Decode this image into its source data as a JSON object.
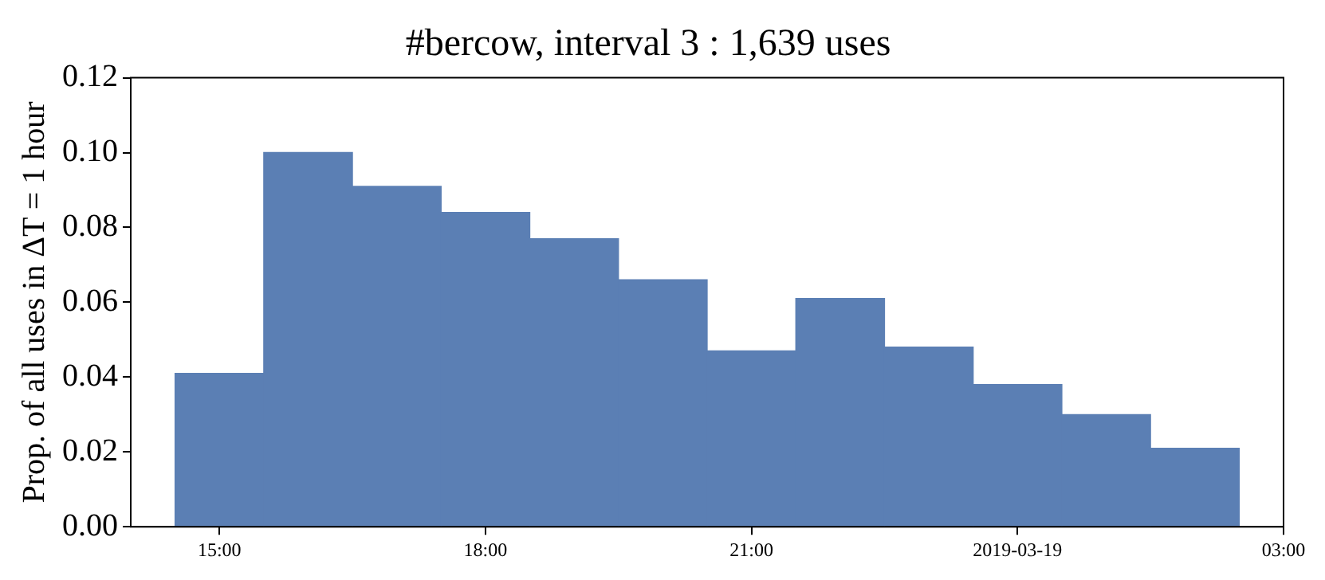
{
  "chart_data": {
    "type": "histogram",
    "title": "#bercow, interval 3 : 1,639 uses",
    "ylabel": "Prop. of all uses in ΔT = 1 hour",
    "bins": [
      "2019-03-18T14:30",
      "2019-03-18T15:30",
      "2019-03-18T16:30",
      "2019-03-18T17:30",
      "2019-03-18T18:30",
      "2019-03-18T19:30",
      "2019-03-18T20:30",
      "2019-03-18T21:30",
      "2019-03-18T22:30",
      "2019-03-18T23:30",
      "2019-03-19T00:30",
      "2019-03-19T01:30",
      "2019-03-19T02:30"
    ],
    "values": [
      0.041,
      0.1,
      0.091,
      0.084,
      0.077,
      0.066,
      0.047,
      0.061,
      0.048,
      0.038,
      0.03,
      0.021
    ],
    "color": "#5b7fb4",
    "xlim": [
      "2019-03-18T14:00",
      "2019-03-19T03:00"
    ],
    "xticks": [
      {
        "value": "2019-03-18T15:00",
        "label": "15:00"
      },
      {
        "value": "2019-03-18T18:00",
        "label": "18:00"
      },
      {
        "value": "2019-03-18T21:00",
        "label": "21:00"
      },
      {
        "value": "2019-03-19T00:00",
        "label": "2019-03-19"
      },
      {
        "value": "2019-03-19T03:00",
        "label": "03:00"
      }
    ],
    "ylim": [
      0,
      0.12
    ],
    "yticks": [
      {
        "value": 0,
        "label": "0.00"
      },
      {
        "value": 0.02,
        "label": "0.02"
      },
      {
        "value": 0.04,
        "label": "0.04"
      },
      {
        "value": 0.06,
        "label": "0.06"
      },
      {
        "value": 0.08,
        "label": "0.08"
      },
      {
        "value": 0.1,
        "label": "0.10"
      },
      {
        "value": 0.12,
        "label": "0.12"
      }
    ],
    "grid": false,
    "legend": false
  }
}
